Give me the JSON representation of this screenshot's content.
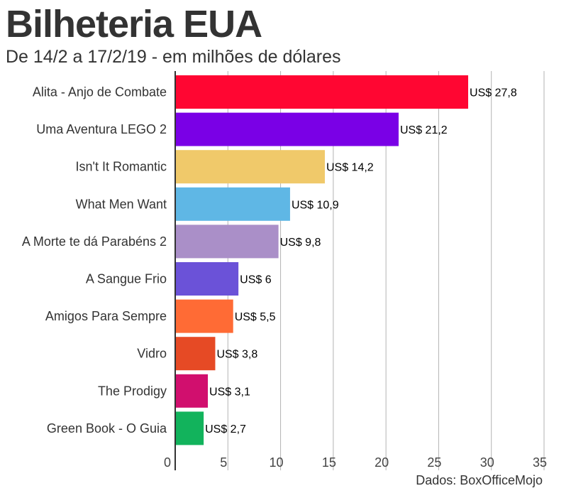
{
  "header": {
    "title": "Bilheteria EUA",
    "subtitle": "De 14/2 a 17/2/19 - em milhões de dólares"
  },
  "footer": {
    "source": "Dados: BoxOfficeMojo"
  },
  "chart_data": {
    "type": "bar",
    "orientation": "horizontal",
    "title": "Bilheteria EUA",
    "subtitle": "De 14/2 a 17/2/19 - em milhões de dólares",
    "xlabel": "",
    "ylabel": "",
    "xlim": [
      0,
      35
    ],
    "ticks": [
      0,
      5,
      10,
      15,
      20,
      25,
      30,
      35
    ],
    "grid": true,
    "legend": "none",
    "categories": [
      "Alita - Anjo de Combate",
      "Uma Aventura LEGO 2",
      "Isn't It Romantic",
      "What Men Want",
      "A Morte te dá Parabéns 2",
      "A Sangue Frio",
      "Amigos Para Sempre",
      "Vidro",
      "The Prodigy",
      "Green Book - O Guia"
    ],
    "values": [
      27.8,
      21.2,
      14.2,
      10.9,
      9.8,
      6,
      5.5,
      3.8,
      3.1,
      2.7
    ],
    "data_labels": [
      "US$ 27,8",
      "US$ 21,2",
      "US$ 14,2",
      "US$ 10,9",
      "US$ 9,8",
      "US$ 6",
      "US$ 5,5",
      "US$ 3,8",
      "US$ 3,1",
      "US$ 2,7"
    ],
    "colors": [
      "#ff0632",
      "#7a00e6",
      "#f0c96a",
      "#5fb7e5",
      "#aa8fc8",
      "#6b52d8",
      "#ff6b35",
      "#e64a25",
      "#d10f6e",
      "#12b35c"
    ],
    "grid_color": "#b3b3b3",
    "axis_color": "#333333"
  }
}
